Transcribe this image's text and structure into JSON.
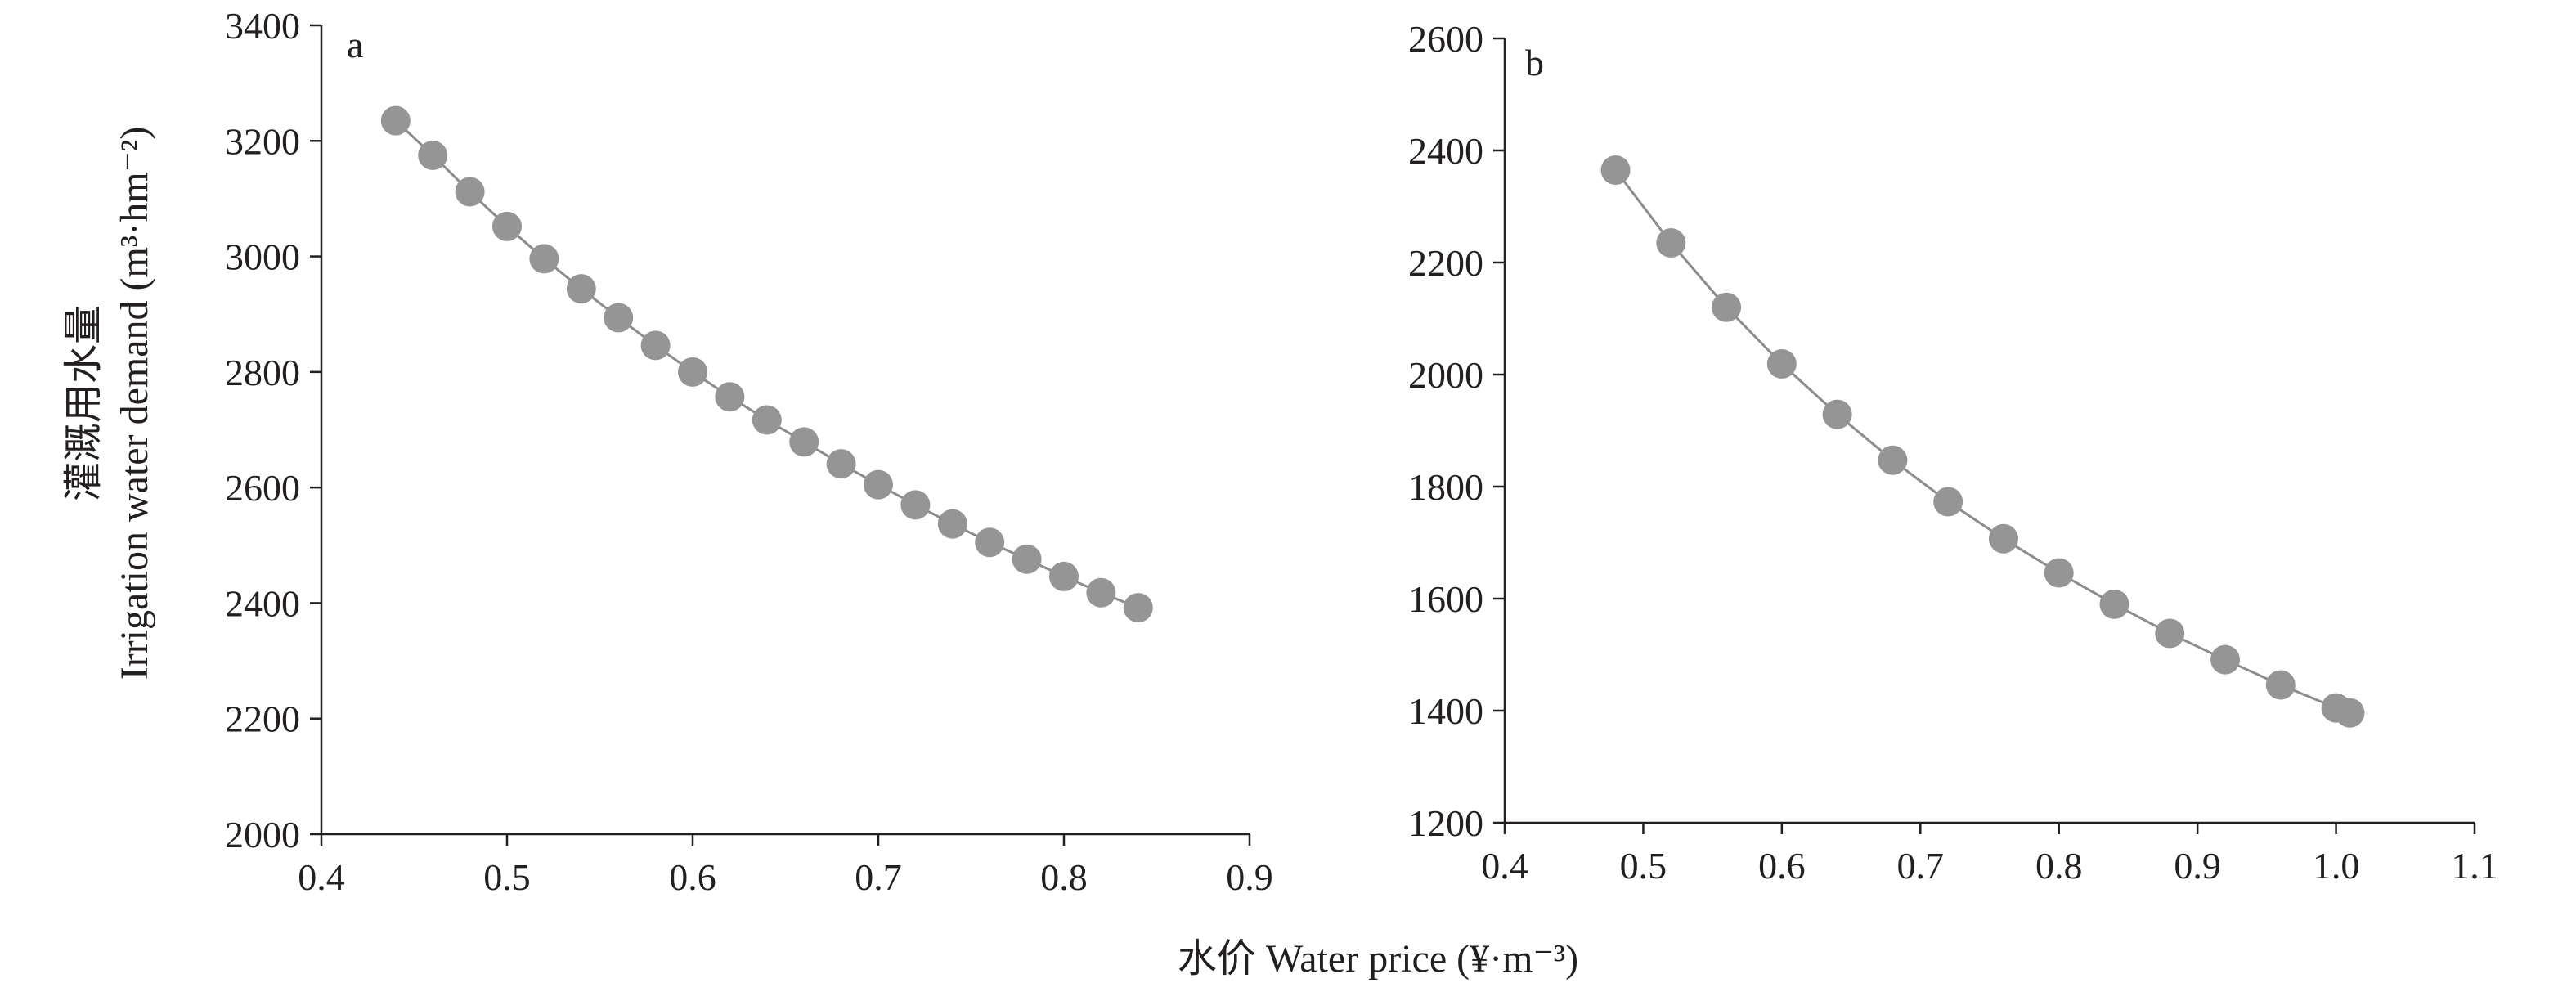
{
  "figure": {
    "y_axis_title_cn": "灌溉用水量",
    "y_axis_title_en": "Irrigation water demand (m³·hm⁻²)",
    "x_axis_title": "水价 Water price (¥·m⁻³)"
  },
  "colors": {
    "marker": "#959595",
    "line": "#8c8c8c",
    "axis": "#231f20"
  },
  "chart_data": [
    {
      "type": "line",
      "panel_label": "a",
      "xlim": [
        0.4,
        0.9
      ],
      "ylim": [
        2000,
        3400
      ],
      "x_ticks": [
        "0.4",
        "0.5",
        "0.6",
        "0.7",
        "0.8",
        "0.9"
      ],
      "y_ticks": [
        "2000",
        "2200",
        "2400",
        "2600",
        "2800",
        "3000",
        "3200",
        "3400"
      ],
      "grid": false,
      "legend": "none",
      "series": [
        {
          "x": [
            0.44,
            0.46,
            0.48,
            0.5,
            0.52,
            0.54,
            0.56,
            0.58,
            0.6,
            0.62,
            0.64,
            0.66,
            0.68,
            0.7,
            0.72,
            0.74,
            0.76,
            0.78,
            0.8,
            0.82,
            0.84
          ],
          "y": [
            3235,
            3175,
            3112,
            3052,
            2996,
            2944,
            2894,
            2846,
            2800,
            2757,
            2717,
            2679,
            2641,
            2605,
            2570,
            2537,
            2505,
            2476,
            2446,
            2418,
            2392
          ]
        }
      ]
    },
    {
      "type": "line",
      "panel_label": "b",
      "xlim": [
        0.4,
        1.1
      ],
      "ylim": [
        1200,
        2600
      ],
      "x_ticks": [
        "0.4",
        "0.5",
        "0.6",
        "0.7",
        "0.8",
        "0.9",
        "1.0",
        "1.1"
      ],
      "y_ticks": [
        "1200",
        "1400",
        "1600",
        "1800",
        "2000",
        "2200",
        "2400",
        "2600"
      ],
      "grid": false,
      "legend": "none",
      "series": [
        {
          "x": [
            0.48,
            0.52,
            0.56,
            0.6,
            0.64,
            0.68,
            0.72,
            0.76,
            0.8,
            0.84,
            0.88,
            0.92,
            0.96,
            1.0,
            1.01
          ],
          "y": [
            2365,
            2235,
            2120,
            2019,
            1929,
            1847,
            1773,
            1707,
            1646,
            1590,
            1538,
            1491,
            1446,
            1405,
            1396
          ]
        }
      ]
    }
  ]
}
